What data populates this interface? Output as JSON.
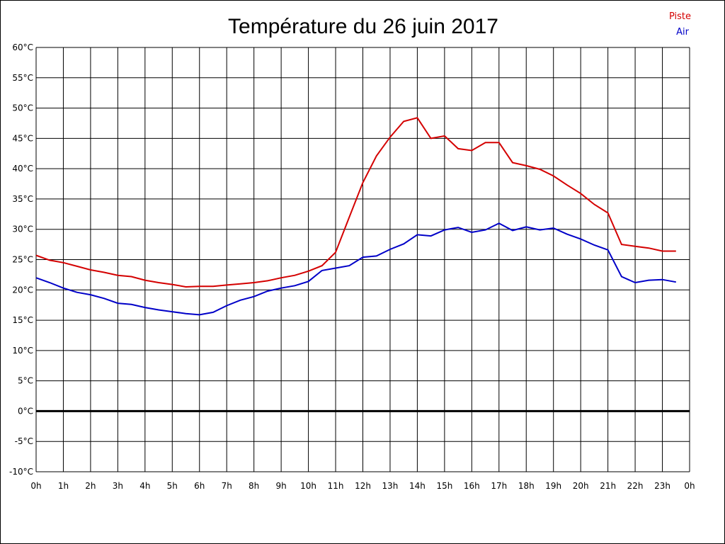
{
  "chart_data": {
    "type": "line",
    "title": "Température du 26 juin 2017",
    "x_ticks": [
      "0h",
      "1h",
      "2h",
      "3h",
      "4h",
      "5h",
      "6h",
      "7h",
      "8h",
      "9h",
      "10h",
      "11h",
      "12h",
      "13h",
      "14h",
      "15h",
      "16h",
      "17h",
      "18h",
      "19h",
      "20h",
      "21h",
      "22h",
      "23h",
      "0h"
    ],
    "y_ticks": [
      "60°C",
      "55°C",
      "50°C",
      "45°C",
      "40°C",
      "35°C",
      "30°C",
      "25°C",
      "20°C",
      "15°C",
      "10°C",
      "5°C",
      "0°C",
      "-5°C",
      "-10°C"
    ],
    "xlim": [
      0,
      24
    ],
    "ylim": [
      -10,
      60
    ],
    "grid": true,
    "legend_position": "top-right",
    "x": [
      0,
      0.5,
      1,
      1.5,
      2,
      2.5,
      3,
      3.5,
      4,
      4.5,
      5,
      5.5,
      6,
      6.5,
      7,
      7.5,
      8,
      8.5,
      9,
      9.5,
      10,
      10.5,
      11,
      11.5,
      12,
      12.5,
      13,
      13.5,
      14,
      14.5,
      15,
      15.5,
      16,
      16.5,
      17,
      17.5,
      18,
      18.5,
      19,
      19.5,
      20,
      20.5,
      21,
      21.5,
      22,
      22.5,
      23,
      23.5
    ],
    "series": [
      {
        "name": "Piste",
        "color": "#d40000",
        "values": [
          25.7,
          24.9,
          24.5,
          23.9,
          23.3,
          22.9,
          22.4,
          22.2,
          21.6,
          21.2,
          20.9,
          20.5,
          20.6,
          20.6,
          20.8,
          21.0,
          21.2,
          21.5,
          22.0,
          22.4,
          23.1,
          24.0,
          26.2,
          32.0,
          37.7,
          42.1,
          45.2,
          47.8,
          48.4,
          45.0,
          45.4,
          43.3,
          43.0,
          44.3,
          44.3,
          41.0,
          40.5,
          39.9,
          38.8,
          37.3,
          35.9,
          34.1,
          32.7,
          27.5,
          27.2,
          26.9,
          26.4,
          26.4
        ]
      },
      {
        "name": "Air",
        "color": "#0000c8",
        "values": [
          22.0,
          21.2,
          20.3,
          19.6,
          19.2,
          18.6,
          17.8,
          17.6,
          17.1,
          16.7,
          16.4,
          16.1,
          15.9,
          16.3,
          17.4,
          18.3,
          18.9,
          19.8,
          20.3,
          20.7,
          21.4,
          23.2,
          23.6,
          24.0,
          25.4,
          25.6,
          26.7,
          27.6,
          29.1,
          28.9,
          29.9,
          30.3,
          29.5,
          29.9,
          31.0,
          29.8,
          30.4,
          29.9,
          30.2,
          29.2,
          28.4,
          27.4,
          26.6,
          22.2,
          21.2,
          21.6,
          21.7,
          21.3
        ]
      }
    ],
    "zero_line_color": "#000000"
  }
}
